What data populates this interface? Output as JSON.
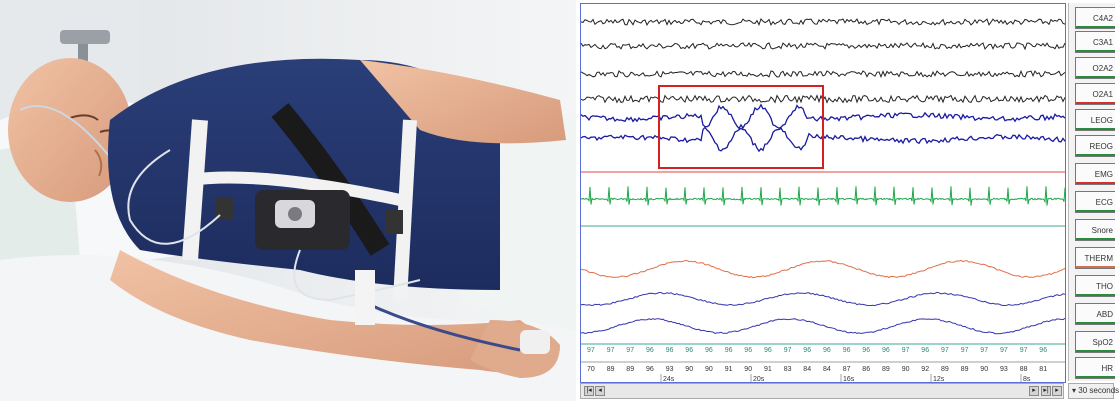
{
  "eeg_panel": {
    "channel_labels": [
      {
        "text": "C4A2",
        "color": "#2c8a3c"
      },
      {
        "text": "C3A1",
        "color": "#2c8a3c"
      },
      {
        "text": "O2A2",
        "color": "#2c8a3c"
      },
      {
        "text": "O2A1",
        "color": "#d03030"
      },
      {
        "text": "LEOG",
        "color": "#2c8a3c"
      },
      {
        "text": "REOG",
        "color": "#2c8a3c"
      },
      {
        "text": "EMG",
        "color": "#d03030"
      },
      {
        "text": "ECG",
        "color": "#2c8a3c"
      },
      {
        "text": "Snore",
        "color": "#2c8a3c"
      },
      {
        "text": "THERM",
        "color": "#d07050"
      },
      {
        "text": "THO",
        "color": "#2c8a3c"
      },
      {
        "text": "ABD",
        "color": "#2c8a3c"
      },
      {
        "text": "SpO2",
        "color": "#2c8a3c"
      },
      {
        "text": "HR",
        "color": "#2c8a3c"
      }
    ],
    "spo2_values": [
      "97",
      "97",
      "97",
      "96",
      "96",
      "96",
      "96",
      "96",
      "96",
      "96",
      "97",
      "96",
      "96",
      "96",
      "96",
      "96",
      "97",
      "96",
      "97",
      "97",
      "97",
      "97",
      "97",
      "96"
    ],
    "hr_values": [
      "70",
      "89",
      "89",
      "96",
      "93",
      "90",
      "90",
      "91",
      "90",
      "91",
      "83",
      "84",
      "84",
      "87",
      "86",
      "89",
      "90",
      "92",
      "89",
      "89",
      "90",
      "93",
      "88",
      "81"
    ],
    "time_labels": [
      "24s",
      "20s",
      "16s",
      "12s",
      "8s"
    ],
    "seconds_label": "30 seconds",
    "colors": {
      "eeg": "#222222",
      "eog": "#1a1aa0",
      "ecg": "#1fa84a",
      "therm": "#e0704a",
      "resp": "#3535b0",
      "highlight": "#d42020",
      "separator_red": "#d44",
      "separator_teal": "#3aa89a"
    }
  }
}
